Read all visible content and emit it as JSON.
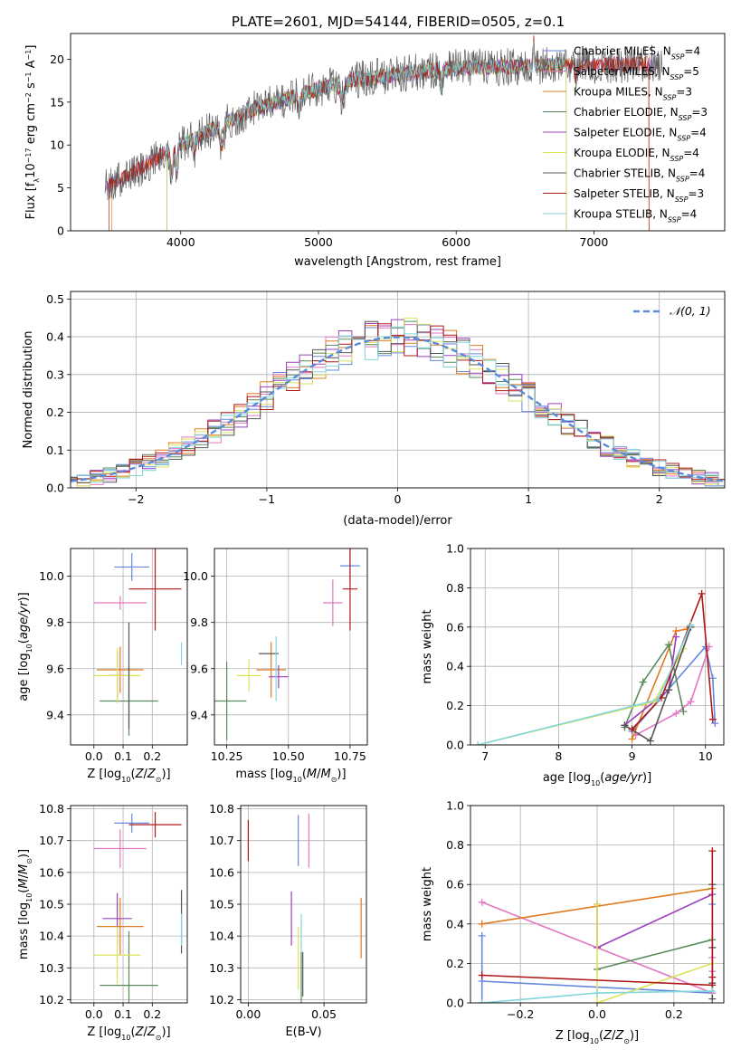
{
  "title": "PLATE=2601, MJD=54144, FIBERID=0505, z=0.1",
  "colors": {
    "chabrier_miles": "#6688dd",
    "salpeter_miles": "#e377c2",
    "kroupa_miles": "#e07b20",
    "chabrier_elodie": "#5a8a5a",
    "salpeter_elodie": "#9c40c0",
    "kroupa_elodie": "#dde35a",
    "chabrier_stelib": "#555555",
    "salpeter_stelib": "#b01818",
    "kroupa_stelib": "#80d6dc",
    "normal": "#5b8bd9"
  },
  "chart_data": [
    {
      "type": "line",
      "panel": "spectrum",
      "xlabel": "wavelength [Angstrom, rest frame]",
      "ylabel": "Flux [f_λ 10^-17 erg cm^-2 s^-1 A^-1]",
      "xlim": [
        3200,
        7950
      ],
      "ylim": [
        0,
        23
      ],
      "xticks": [
        4000,
        5000,
        6000,
        7000
      ],
      "yticks": [
        0,
        5,
        10,
        15,
        20
      ],
      "grid": false,
      "legend_position": "right",
      "series": [
        {
          "key": "chabrier_miles",
          "label_main": "Chabrier MILES, N",
          "label_sub": "SSP",
          "label_end": "=4",
          "range": [
            3450,
            7450
          ],
          "noise": 1.0
        },
        {
          "key": "salpeter_miles",
          "label_main": "Salpeter MILES, N",
          "label_sub": "SSP",
          "label_end": "=5",
          "range": [
            3450,
            7450
          ],
          "noise": 1.0
        },
        {
          "key": "kroupa_miles",
          "label_main": "Kroupa MILES, N",
          "label_sub": "SSP",
          "label_end": "=3",
          "range": [
            3500,
            7400
          ],
          "noise": 0.9
        },
        {
          "key": "chabrier_elodie",
          "label_main": "Chabrier ELODIE, N",
          "label_sub": "SSP",
          "label_end": "=3",
          "range": [
            3900,
            6800
          ],
          "noise": 0.9
        },
        {
          "key": "salpeter_elodie",
          "label_main": "Salpeter ELODIE, N",
          "label_sub": "SSP",
          "label_end": "=4",
          "range": [
            3900,
            6800
          ],
          "noise": 0.9
        },
        {
          "key": "kroupa_elodie",
          "label_main": "Kroupa ELODIE, N",
          "label_sub": "SSP",
          "label_end": "=4",
          "range": [
            3900,
            6800
          ],
          "noise": 0.9
        },
        {
          "key": "chabrier_stelib",
          "label_main": "Chabrier STELIB, N",
          "label_sub": "SSP",
          "label_end": "=4",
          "range": [
            3450,
            7500
          ],
          "noise": 2.2
        },
        {
          "key": "salpeter_stelib",
          "label_main": "Salpeter STELIB, N",
          "label_sub": "SSP",
          "label_end": "=3",
          "range": [
            3480,
            7400
          ],
          "noise": 0.9
        },
        {
          "key": "kroupa_stelib",
          "label_main": "Kroupa STELIB, N",
          "label_sub": "SSP",
          "label_end": "=4",
          "range": [
            3880,
            6800
          ],
          "noise": 0.9
        }
      ]
    },
    {
      "type": "line",
      "panel": "residuals",
      "xlabel": "(data-model)/error",
      "ylabel": "Normed distribution",
      "xlim": [
        -2.5,
        2.5
      ],
      "ylim": [
        0,
        0.52
      ],
      "xticks": [
        -2,
        -1,
        0,
        1,
        2
      ],
      "yticks": [
        0.0,
        0.1,
        0.2,
        0.3,
        0.4,
        0.5
      ],
      "grid": true,
      "legend_position": "top-right",
      "normal_label": "𝒩(0, 1)",
      "bin_width": 0.1
    },
    {
      "type": "scatter",
      "panel": "age_vs_Z",
      "xlabel": "Z [log10(Z/Z⊙)]",
      "ylabel": "age [log10(age/yr)]",
      "xlim": [
        -0.08,
        0.32
      ],
      "ylim": [
        9.27,
        10.12
      ],
      "xticks": [
        0.0,
        0.1,
        0.2
      ],
      "yticks": [
        9.4,
        9.6,
        9.8,
        10.0
      ],
      "grid": true,
      "points": [
        {
          "key": "chabrier_miles",
          "x": 0.13,
          "y": 10.04,
          "xerr": 0.06,
          "yerr": 0.06
        },
        {
          "key": "salpeter_miles",
          "x": 0.09,
          "y": 9.885,
          "xerr": 0.09,
          "yerr": 0.03
        },
        {
          "key": "kroupa_miles",
          "x": 0.09,
          "y": 9.595,
          "xerr": 0.08,
          "yerr": 0.1
        },
        {
          "key": "chabrier_elodie",
          "x": 0.12,
          "y": 9.46,
          "xerr": 0.1,
          "yerr": 0.15
        },
        {
          "key": "salpeter_elodie",
          "x": 0.08,
          "y": 9.57,
          "xerr": 0.03,
          "yerr": 0.1
        },
        {
          "key": "kroupa_elodie",
          "x": 0.08,
          "y": 9.57,
          "xerr": 0.08,
          "yerr": 0.12
        },
        {
          "key": "chabrier_stelib",
          "x": 0.12,
          "y": 9.57,
          "xerr": 0.0,
          "yerr": 0.23
        },
        {
          "key": "salpeter_stelib",
          "x": 0.21,
          "y": 9.945,
          "xerr": 0.09,
          "yerr": 0.18
        },
        {
          "key": "kroupa_stelib",
          "x": 0.3,
          "y": 9.665,
          "xerr": 0.0,
          "yerr": 0.05
        }
      ]
    },
    {
      "type": "scatter",
      "panel": "age_vs_mass",
      "xlabel": "mass [log10(M/M⊙)]",
      "ylabel": "",
      "xlim": [
        10.2,
        10.82
      ],
      "ylim": [
        9.27,
        10.12
      ],
      "xticks": [
        10.25,
        10.5,
        10.75
      ],
      "yticks": [
        9.4,
        9.6,
        9.8,
        10.0
      ],
      "grid": true,
      "points": [
        {
          "key": "chabrier_miles",
          "x": 10.75,
          "y": 10.045,
          "xerr": 0.04,
          "yerr": 0.07
        },
        {
          "key": "salpeter_miles",
          "x": 10.68,
          "y": 9.885,
          "xerr": 0.04,
          "yerr": 0.1
        },
        {
          "key": "kroupa_miles",
          "x": 10.43,
          "y": 9.595,
          "xerr": 0.06,
          "yerr": 0.12
        },
        {
          "key": "chabrier_elodie",
          "x": 10.25,
          "y": 9.46,
          "xerr": 0.08,
          "yerr": 0.17
        },
        {
          "key": "salpeter_elodie",
          "x": 10.46,
          "y": 9.565,
          "xerr": 0.04,
          "yerr": 0.05
        },
        {
          "key": "kroupa_elodie",
          "x": 10.34,
          "y": 9.57,
          "xerr": 0.05,
          "yerr": 0.07
        },
        {
          "key": "chabrier_stelib",
          "x": 10.42,
          "y": 9.665,
          "xerr": 0.04,
          "yerr": 0.0
        },
        {
          "key": "salpeter_stelib",
          "x": 10.75,
          "y": 9.945,
          "xerr": 0.03,
          "yerr": 0.18
        },
        {
          "key": "kroupa_stelib",
          "x": 10.45,
          "y": 9.6,
          "xerr": 0.0,
          "yerr": 0.14
        }
      ]
    },
    {
      "type": "line",
      "panel": "weight_vs_age",
      "xlabel": "age [log10(age/yr)]",
      "ylabel": "mass weight",
      "xlim": [
        6.8,
        10.25
      ],
      "ylim": [
        0,
        1
      ],
      "xticks": [
        7,
        8,
        9,
        10
      ],
      "yticks": [
        0.0,
        0.2,
        0.4,
        0.6,
        0.8,
        1.0
      ],
      "grid": true,
      "series": [
        {
          "key": "chabrier_miles",
          "points": [
            [
              9.0,
              0.07
            ],
            [
              10.0,
              0.5
            ],
            [
              10.1,
              0.34
            ],
            [
              10.13,
              0.11
            ]
          ]
        },
        {
          "key": "salpeter_miles",
          "points": [
            [
              9.05,
              0.05
            ],
            [
              9.6,
              0.16
            ],
            [
              9.8,
              0.22
            ],
            [
              10.05,
              0.5
            ]
          ]
        },
        {
          "key": "kroupa_miles",
          "points": [
            [
              9.0,
              0.03
            ],
            [
              9.6,
              0.58
            ],
            [
              9.75,
              0.59
            ]
          ]
        },
        {
          "key": "chabrier_elodie",
          "points": [
            [
              8.9,
              0.09
            ],
            [
              9.15,
              0.32
            ],
            [
              9.5,
              0.51
            ],
            [
              9.7,
              0.17
            ]
          ]
        },
        {
          "key": "salpeter_elodie",
          "points": [
            [
              8.9,
              0.1
            ],
            [
              9.5,
              0.28
            ],
            [
              9.6,
              0.55
            ]
          ]
        },
        {
          "key": "kroupa_elodie",
          "points": [
            [
              6.9,
              0.0
            ],
            [
              9.3,
              0.22
            ],
            [
              9.7,
              0.49
            ]
          ]
        },
        {
          "key": "chabrier_stelib",
          "points": [
            [
              8.9,
              0.1
            ],
            [
              9.25,
              0.02
            ],
            [
              9.5,
              0.28
            ],
            [
              9.8,
              0.6
            ]
          ]
        },
        {
          "key": "salpeter_stelib",
          "points": [
            [
              9.0,
              0.08
            ],
            [
              9.4,
              0.24
            ],
            [
              9.95,
              0.77
            ],
            [
              10.1,
              0.13
            ]
          ]
        },
        {
          "key": "kroupa_stelib",
          "points": [
            [
              6.9,
              0.0
            ],
            [
              9.35,
              0.23
            ],
            [
              9.8,
              0.61
            ]
          ]
        }
      ]
    },
    {
      "type": "scatter",
      "panel": "mass_vs_Z",
      "xlabel": "Z [log10(Z/Z⊙)]",
      "ylabel": "mass [log10(M/M⊙)]",
      "xlim": [
        -0.08,
        0.32
      ],
      "ylim": [
        10.19,
        10.81
      ],
      "xticks": [
        0.0,
        0.1,
        0.2
      ],
      "yticks": [
        10.2,
        10.3,
        10.4,
        10.5,
        10.6,
        10.7,
        10.8
      ],
      "grid": true,
      "points": [
        {
          "key": "chabrier_miles",
          "x": 0.13,
          "y": 10.755,
          "xerr": 0.06,
          "yerr": 0.03
        },
        {
          "key": "salpeter_miles",
          "x": 0.09,
          "y": 10.675,
          "xerr": 0.09,
          "yerr": 0.06
        },
        {
          "key": "kroupa_miles",
          "x": 0.09,
          "y": 10.43,
          "xerr": 0.08,
          "yerr": 0.09
        },
        {
          "key": "chabrier_elodie",
          "x": 0.12,
          "y": 10.245,
          "xerr": 0.1,
          "yerr": 0.17
        },
        {
          "key": "salpeter_elodie",
          "x": 0.08,
          "y": 10.455,
          "xerr": 0.05,
          "yerr": 0.08
        },
        {
          "key": "kroupa_elodie",
          "x": 0.08,
          "y": 10.34,
          "xerr": 0.08,
          "yerr": 0.09
        },
        {
          "key": "chabrier_stelib",
          "x": 0.3,
          "y": 10.445,
          "xerr": 0.0,
          "yerr": 0.1
        },
        {
          "key": "salpeter_stelib",
          "x": 0.21,
          "y": 10.75,
          "xerr": 0.09,
          "yerr": 0.04
        },
        {
          "key": "kroupa_stelib",
          "x": 0.3,
          "y": 10.42,
          "xerr": 0.0,
          "yerr": 0.05
        }
      ]
    },
    {
      "type": "scatter",
      "panel": "mass_vs_EBV",
      "xlabel": "E(B-V)",
      "ylabel": "",
      "xlim": [
        -0.005,
        0.078
      ],
      "ylim": [
        10.19,
        10.81
      ],
      "xticks": [
        0.0,
        0.05
      ],
      "yticks": [
        10.2,
        10.3,
        10.4,
        10.5,
        10.6,
        10.7,
        10.8
      ],
      "grid": true,
      "points": [
        {
          "key": "chabrier_miles",
          "x": 0.033,
          "y": 10.7,
          "yerr": 0.08
        },
        {
          "key": "salpeter_miles",
          "x": 0.04,
          "y": 10.7,
          "yerr": 0.085
        },
        {
          "key": "kroupa_miles",
          "x": 0.0745,
          "y": 10.425,
          "yerr": 0.095
        },
        {
          "key": "chabrier_elodie",
          "x": 0.035,
          "y": 10.25,
          "yerr": 0.1
        },
        {
          "key": "salpeter_elodie",
          "x": 0.0285,
          "y": 10.455,
          "yerr": 0.085
        },
        {
          "key": "kroupa_elodie",
          "x": 0.033,
          "y": 10.33,
          "yerr": 0.1
        },
        {
          "key": "chabrier_stelib",
          "x": 0.036,
          "y": 10.28,
          "yerr": 0.07
        },
        {
          "key": "salpeter_stelib",
          "x": 0.0,
          "y": 10.7,
          "yerr": 0.065
        },
        {
          "key": "kroupa_stelib",
          "x": 0.035,
          "y": 10.41,
          "yerr": 0.06
        }
      ]
    },
    {
      "type": "line",
      "panel": "weight_vs_Z",
      "xlabel": "Z [log10(Z/Z⊙)]",
      "ylabel": "mass weight",
      "xlim": [
        -0.33,
        0.33
      ],
      "ylim": [
        0,
        1
      ],
      "xticks": [
        -0.2,
        0.0,
        0.2
      ],
      "yticks": [
        0.0,
        0.2,
        0.4,
        0.6,
        0.8,
        1.0
      ],
      "grid": true,
      "series": [
        {
          "key": "chabrier_miles",
          "points": [
            [
              -0.3,
              0.0
            ],
            [
              -0.3,
              0.34
            ],
            [
              -0.3,
              0.11
            ],
            [
              0.3,
              0.05
            ],
            [
              0.3,
              0.5
            ]
          ]
        },
        {
          "key": "salpeter_miles",
          "points": [
            [
              -0.3,
              0.51
            ],
            [
              0.3,
              0.05
            ],
            [
              0.3,
              0.23
            ],
            [
              0.3,
              0.16
            ]
          ]
        },
        {
          "key": "kroupa_miles",
          "points": [
            [
              -0.3,
              0.4
            ],
            [
              0.3,
              0.58
            ]
          ]
        },
        {
          "key": "chabrier_elodie",
          "points": [
            [
              0.0,
              0.17
            ],
            [
              0.3,
              0.32
            ]
          ]
        },
        {
          "key": "salpeter_elodie",
          "points": [
            [
              0.0,
              0.5
            ],
            [
              0.0,
              0.28
            ],
            [
              0.3,
              0.55
            ]
          ]
        },
        {
          "key": "kroupa_elodie",
          "points": [
            [
              0.0,
              0.5
            ],
            [
              0.0,
              0.0
            ],
            [
              0.3,
              0.2
            ]
          ]
        },
        {
          "key": "chabrier_stelib",
          "points": [
            [
              0.3,
              0.6
            ],
            [
              0.3,
              0.1
            ],
            [
              0.3,
              0.02
            ],
            [
              0.3,
              0.28
            ]
          ]
        },
        {
          "key": "salpeter_stelib",
          "points": [
            [
              -0.3,
              0.14
            ],
            [
              0.3,
              0.09
            ],
            [
              0.3,
              0.77
            ],
            [
              0.3,
              0.13
            ]
          ]
        },
        {
          "key": "kroupa_stelib",
          "points": [
            [
              -0.3,
              0.0
            ],
            [
              0.0,
              0.05
            ],
            [
              0.3,
              0.06
            ]
          ]
        }
      ]
    }
  ]
}
